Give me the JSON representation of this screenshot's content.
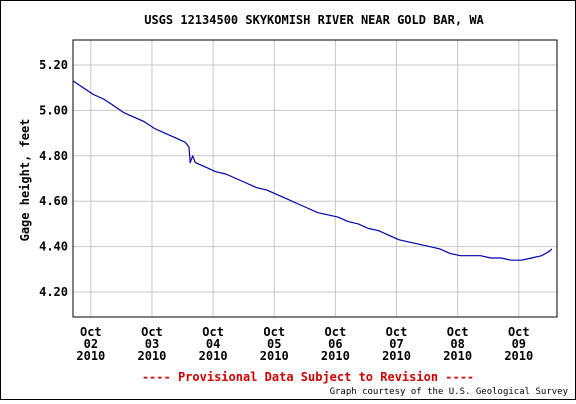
{
  "chart_data": {
    "type": "line",
    "title": "USGS 12134500 SKYKOMISH RIVER NEAR GOLD BAR, WA",
    "xlabel": "",
    "ylabel": "Gage height, feet",
    "ylim": [
      4.09,
      5.31
    ],
    "xlim": [
      "2010-10-01T17:00",
      "2010-10-09T15:00"
    ],
    "y_ticks": [
      "5.20",
      "5.00",
      "4.80",
      "4.60",
      "4.40",
      "4.20"
    ],
    "y_tick_values": [
      5.2,
      5.0,
      4.8,
      4.6,
      4.4,
      4.2
    ],
    "x_ticks": [
      {
        "lines": [
          "Oct",
          "02",
          "2010"
        ],
        "date": "2010-10-02"
      },
      {
        "lines": [
          "Oct",
          "03",
          "2010"
        ],
        "date": "2010-10-03"
      },
      {
        "lines": [
          "Oct",
          "04",
          "2010"
        ],
        "date": "2010-10-04"
      },
      {
        "lines": [
          "Oct",
          "05",
          "2010"
        ],
        "date": "2010-10-05"
      },
      {
        "lines": [
          "Oct",
          "06",
          "2010"
        ],
        "date": "2010-10-06"
      },
      {
        "lines": [
          "Oct",
          "07",
          "2010"
        ],
        "date": "2010-10-07"
      },
      {
        "lines": [
          "Oct",
          "08",
          "2010"
        ],
        "date": "2010-10-08"
      },
      {
        "lines": [
          "Oct",
          "09",
          "2010"
        ],
        "date": "2010-10-09"
      }
    ],
    "grid": true,
    "series": [
      {
        "x": [
          "2010-10-01T17:00",
          "2010-10-01T21:00",
          "2010-10-02T01:00",
          "2010-10-02T05:00",
          "2010-10-02T09:00",
          "2010-10-02T13:00",
          "2010-10-02T17:00",
          "2010-10-02T21:00",
          "2010-10-03T01:00",
          "2010-10-03T05:00",
          "2010-10-03T09:00",
          "2010-10-03T13:00",
          "2010-10-03T14:30",
          "2010-10-03T15:00",
          "2010-10-03T16:00",
          "2010-10-03T17:00",
          "2010-10-03T21:00",
          "2010-10-04T01:00",
          "2010-10-04T05:00",
          "2010-10-04T09:00",
          "2010-10-04T13:00",
          "2010-10-04T17:00",
          "2010-10-04T21:00",
          "2010-10-05T01:00",
          "2010-10-05T05:00",
          "2010-10-05T09:00",
          "2010-10-05T13:00",
          "2010-10-05T17:00",
          "2010-10-05T21:00",
          "2010-10-06T01:00",
          "2010-10-06T05:00",
          "2010-10-06T09:00",
          "2010-10-06T13:00",
          "2010-10-06T17:00",
          "2010-10-06T21:00",
          "2010-10-07T01:00",
          "2010-10-07T05:00",
          "2010-10-07T09:00",
          "2010-10-07T13:00",
          "2010-10-07T17:00",
          "2010-10-07T21:00",
          "2010-10-08T01:00",
          "2010-10-08T05:00",
          "2010-10-08T09:00",
          "2010-10-08T13:00",
          "2010-10-08T17:00",
          "2010-10-08T21:00",
          "2010-10-09T01:00",
          "2010-10-09T05:00",
          "2010-10-09T09:00",
          "2010-10-09T12:00",
          "2010-10-09T13:00"
        ],
        "values": [
          5.13,
          5.1,
          5.07,
          5.05,
          5.02,
          4.99,
          4.97,
          4.95,
          4.92,
          4.9,
          4.88,
          4.86,
          4.84,
          4.77,
          4.8,
          4.77,
          4.75,
          4.73,
          4.72,
          4.7,
          4.68,
          4.66,
          4.65,
          4.63,
          4.61,
          4.59,
          4.57,
          4.55,
          4.54,
          4.53,
          4.51,
          4.5,
          4.48,
          4.47,
          4.45,
          4.43,
          4.42,
          4.41,
          4.4,
          4.39,
          4.37,
          4.36,
          4.36,
          4.36,
          4.35,
          4.35,
          4.34,
          4.34,
          4.35,
          4.36,
          4.38,
          4.39
        ],
        "color": "#0000aa"
      }
    ]
  },
  "footer": {
    "provisional": "---- Provisional Data Subject to Revision ----",
    "provisional_color": "#cc0000",
    "credit": "Graph courtesy of the U.S. Geological Survey"
  }
}
